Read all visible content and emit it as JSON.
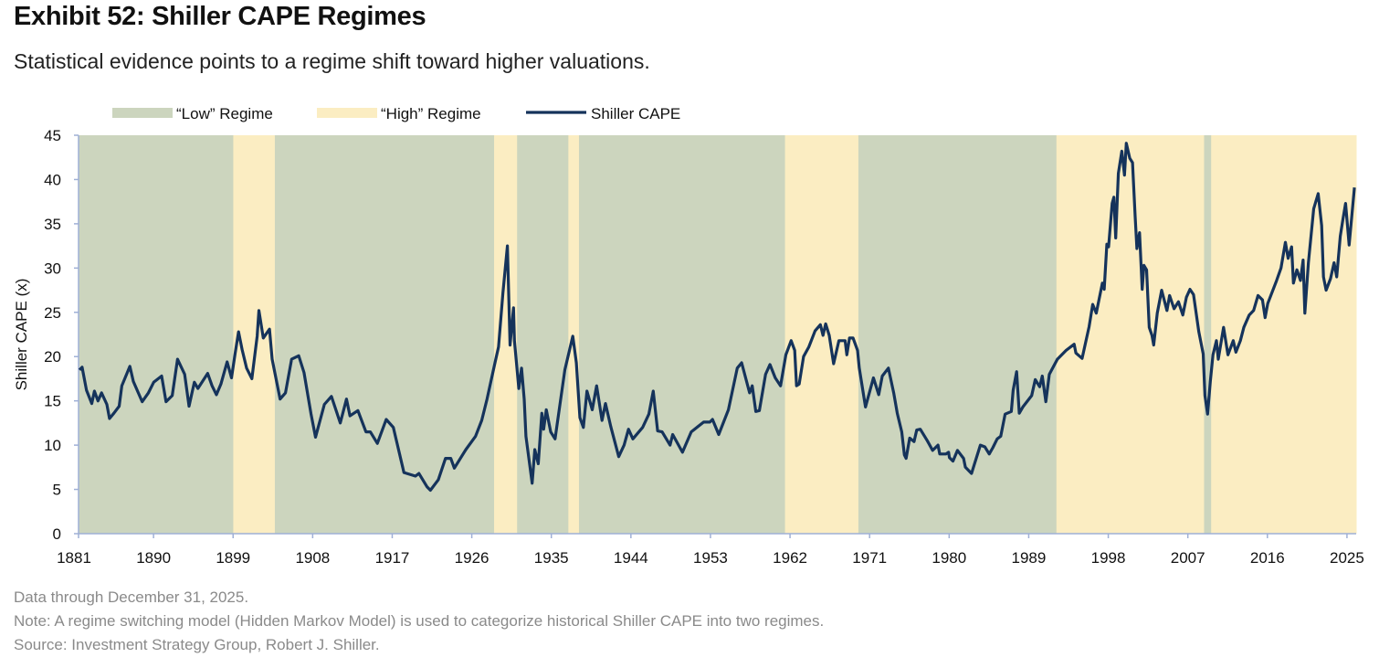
{
  "header": {
    "title": "Exhibit 52: Shiller CAPE Regimes",
    "subtitle": "Statistical evidence points to a regime shift toward higher valuations."
  },
  "footnotes": [
    "Data through December 31, 2025.",
    "Note: A regime switching model (Hidden Markov Model) is used to categorize historical Shiller CAPE into two regimes.",
    "Source: Investment Strategy Group, Robert J. Shiller."
  ],
  "colors": {
    "low": "#CCD5BE",
    "high": "#FBEDC2",
    "line": "#15335B",
    "axis": "#9FB0D6"
  },
  "chart_data": {
    "type": "line",
    "title": "Exhibit 52: Shiller CAPE Regimes",
    "xlabel": "",
    "ylabel": "Shiller CAPE (x)",
    "xlim": [
      1881.5,
      2026.0
    ],
    "ylim": [
      0,
      45
    ],
    "grid": false,
    "legend_placement": "top-left",
    "legend": [
      "“Low” Regime",
      "“High” Regime",
      "Shiller CAPE"
    ],
    "x_ticks": [
      1881,
      1890,
      1899,
      1908,
      1917,
      1926,
      1935,
      1944,
      1953,
      1962,
      1971,
      1980,
      1989,
      1998,
      2007,
      2016,
      2025
    ],
    "y_ticks": [
      0,
      5,
      10,
      15,
      20,
      25,
      30,
      35,
      40,
      45
    ],
    "regimes": [
      {
        "regime": "low",
        "start": 1881.5,
        "end": 1899.0
      },
      {
        "regime": "high",
        "start": 1899.0,
        "end": 1903.7
      },
      {
        "regime": "low",
        "start": 1903.7,
        "end": 1928.5
      },
      {
        "regime": "high",
        "start": 1928.5,
        "end": 1931.1
      },
      {
        "regime": "low",
        "start": 1931.1,
        "end": 1936.9
      },
      {
        "regime": "high",
        "start": 1936.9,
        "end": 1938.1
      },
      {
        "regime": "low",
        "start": 1938.1,
        "end": 1961.4
      },
      {
        "regime": "high",
        "start": 1961.4,
        "end": 1969.7
      },
      {
        "regime": "low",
        "start": 1969.7,
        "end": 1992.1
      },
      {
        "regime": "high",
        "start": 1992.1,
        "end": 2008.8
      },
      {
        "regime": "low",
        "start": 2008.8,
        "end": 2009.6
      },
      {
        "regime": "high",
        "start": 2009.6,
        "end": 2026.0
      }
    ],
    "series": [
      {
        "name": "Shiller CAPE",
        "points": [
          [
            1881.6,
            18.5
          ],
          [
            1881.9,
            18.8
          ],
          [
            1882.4,
            16.2
          ],
          [
            1883.0,
            14.7
          ],
          [
            1883.3,
            16.1
          ],
          [
            1883.7,
            15.0
          ],
          [
            1884.1,
            15.9
          ],
          [
            1884.7,
            14.6
          ],
          [
            1885.0,
            13.0
          ],
          [
            1885.5,
            13.6
          ],
          [
            1886.1,
            14.4
          ],
          [
            1886.4,
            16.7
          ],
          [
            1887.3,
            18.9
          ],
          [
            1887.7,
            17.2
          ],
          [
            1888.7,
            14.9
          ],
          [
            1889.4,
            15.9
          ],
          [
            1890.0,
            17.1
          ],
          [
            1890.9,
            17.8
          ],
          [
            1891.4,
            14.9
          ],
          [
            1892.1,
            15.6
          ],
          [
            1892.7,
            19.7
          ],
          [
            1893.5,
            18.0
          ],
          [
            1894.0,
            14.4
          ],
          [
            1894.6,
            17.1
          ],
          [
            1895.0,
            16.4
          ],
          [
            1896.1,
            18.1
          ],
          [
            1896.6,
            16.7
          ],
          [
            1897.1,
            15.7
          ],
          [
            1897.6,
            16.9
          ],
          [
            1898.3,
            19.4
          ],
          [
            1898.8,
            17.6
          ],
          [
            1899.2,
            20.3
          ],
          [
            1899.6,
            22.8
          ],
          [
            1900.0,
            20.8
          ],
          [
            1900.5,
            18.7
          ],
          [
            1901.1,
            17.5
          ],
          [
            1901.7,
            22.3
          ],
          [
            1901.9,
            25.2
          ],
          [
            1902.4,
            22.1
          ],
          [
            1903.1,
            23.1
          ],
          [
            1903.4,
            19.7
          ],
          [
            1904.3,
            15.2
          ],
          [
            1904.9,
            15.9
          ],
          [
            1905.6,
            19.7
          ],
          [
            1906.4,
            20.1
          ],
          [
            1907.0,
            18.2
          ],
          [
            1907.8,
            13.5
          ],
          [
            1908.3,
            10.9
          ],
          [
            1909.3,
            14.6
          ],
          [
            1910.1,
            15.5
          ],
          [
            1911.1,
            12.5
          ],
          [
            1911.8,
            15.2
          ],
          [
            1912.2,
            13.3
          ],
          [
            1913.1,
            13.9
          ],
          [
            1914.0,
            11.5
          ],
          [
            1914.5,
            11.5
          ],
          [
            1915.3,
            10.2
          ],
          [
            1916.3,
            12.9
          ],
          [
            1917.1,
            12.0
          ],
          [
            1918.3,
            6.9
          ],
          [
            1919.6,
            6.5
          ],
          [
            1920.0,
            6.8
          ],
          [
            1920.9,
            5.3
          ],
          [
            1921.3,
            4.9
          ],
          [
            1922.2,
            6.1
          ],
          [
            1923.0,
            8.5
          ],
          [
            1923.6,
            8.5
          ],
          [
            1924.0,
            7.4
          ],
          [
            1925.3,
            9.5
          ],
          [
            1926.4,
            11.0
          ],
          [
            1927.1,
            12.8
          ],
          [
            1927.7,
            15.2
          ],
          [
            1928.6,
            19.3
          ],
          [
            1929.0,
            21.1
          ],
          [
            1929.5,
            27.2
          ],
          [
            1930.0,
            32.5
          ],
          [
            1930.3,
            21.3
          ],
          [
            1930.7,
            25.5
          ],
          [
            1930.8,
            21.8
          ],
          [
            1931.3,
            16.4
          ],
          [
            1931.6,
            18.7
          ],
          [
            1931.9,
            15.2
          ],
          [
            1932.1,
            11.0
          ],
          [
            1932.8,
            5.7
          ],
          [
            1933.1,
            9.5
          ],
          [
            1933.5,
            7.9
          ],
          [
            1933.9,
            13.6
          ],
          [
            1934.1,
            11.8
          ],
          [
            1934.4,
            14.0
          ],
          [
            1934.9,
            11.5
          ],
          [
            1935.4,
            10.7
          ],
          [
            1936.5,
            18.5
          ],
          [
            1937.4,
            22.3
          ],
          [
            1937.8,
            19.3
          ],
          [
            1938.2,
            13.1
          ],
          [
            1938.6,
            12.0
          ],
          [
            1939.0,
            16.1
          ],
          [
            1939.6,
            14.0
          ],
          [
            1940.1,
            16.7
          ],
          [
            1940.7,
            12.8
          ],
          [
            1941.1,
            14.7
          ],
          [
            1941.7,
            12.1
          ],
          [
            1942.6,
            8.7
          ],
          [
            1943.2,
            10.0
          ],
          [
            1943.7,
            11.8
          ],
          [
            1944.2,
            10.7
          ],
          [
            1945.3,
            12.0
          ],
          [
            1946.0,
            13.5
          ],
          [
            1946.5,
            16.1
          ],
          [
            1947.0,
            11.6
          ],
          [
            1947.5,
            11.5
          ],
          [
            1948.4,
            10.0
          ],
          [
            1948.7,
            11.2
          ],
          [
            1949.8,
            9.2
          ],
          [
            1950.8,
            11.5
          ],
          [
            1952.2,
            12.6
          ],
          [
            1952.9,
            12.6
          ],
          [
            1953.2,
            12.9
          ],
          [
            1953.9,
            11.2
          ],
          [
            1955.0,
            14.0
          ],
          [
            1956.0,
            18.7
          ],
          [
            1956.5,
            19.3
          ],
          [
            1957.4,
            15.9
          ],
          [
            1957.7,
            16.7
          ],
          [
            1958.1,
            13.8
          ],
          [
            1958.5,
            13.9
          ],
          [
            1959.2,
            18.0
          ],
          [
            1959.7,
            19.1
          ],
          [
            1960.3,
            17.6
          ],
          [
            1960.9,
            16.7
          ],
          [
            1961.5,
            20.2
          ],
          [
            1962.1,
            21.8
          ],
          [
            1962.5,
            20.7
          ],
          [
            1962.7,
            16.7
          ],
          [
            1963.0,
            16.9
          ],
          [
            1963.5,
            20.0
          ],
          [
            1964.1,
            21.1
          ],
          [
            1964.8,
            22.9
          ],
          [
            1965.4,
            23.6
          ],
          [
            1965.7,
            22.4
          ],
          [
            1966.0,
            23.7
          ],
          [
            1966.4,
            22.4
          ],
          [
            1966.9,
            19.2
          ],
          [
            1967.5,
            21.8
          ],
          [
            1968.2,
            21.8
          ],
          [
            1968.4,
            20.2
          ],
          [
            1968.7,
            22.1
          ],
          [
            1969.1,
            22.1
          ],
          [
            1969.6,
            20.7
          ],
          [
            1969.8,
            18.7
          ],
          [
            1970.5,
            14.3
          ],
          [
            1971.4,
            17.6
          ],
          [
            1972.0,
            15.7
          ],
          [
            1972.4,
            17.8
          ],
          [
            1973.1,
            18.7
          ],
          [
            1973.7,
            15.9
          ],
          [
            1974.1,
            13.6
          ],
          [
            1974.6,
            11.5
          ],
          [
            1974.9,
            8.9
          ],
          [
            1975.1,
            8.5
          ],
          [
            1975.5,
            10.8
          ],
          [
            1976.0,
            10.4
          ],
          [
            1976.3,
            11.7
          ],
          [
            1976.7,
            11.8
          ],
          [
            1977.5,
            10.5
          ],
          [
            1978.1,
            9.4
          ],
          [
            1978.7,
            10.0
          ],
          [
            1978.9,
            9.0
          ],
          [
            1979.6,
            9.0
          ],
          [
            1979.9,
            9.2
          ],
          [
            1980.0,
            8.6
          ],
          [
            1980.4,
            8.2
          ],
          [
            1980.9,
            9.4
          ],
          [
            1981.6,
            8.5
          ],
          [
            1981.8,
            7.5
          ],
          [
            1982.5,
            6.8
          ],
          [
            1983.5,
            10.0
          ],
          [
            1984.0,
            9.8
          ],
          [
            1984.5,
            9.0
          ],
          [
            1984.9,
            9.7
          ],
          [
            1985.4,
            10.7
          ],
          [
            1985.8,
            11.0
          ],
          [
            1986.3,
            13.5
          ],
          [
            1987.0,
            13.8
          ],
          [
            1987.2,
            16.2
          ],
          [
            1987.6,
            18.3
          ],
          [
            1987.9,
            13.6
          ],
          [
            1988.3,
            14.3
          ],
          [
            1989.3,
            15.6
          ],
          [
            1989.7,
            17.4
          ],
          [
            1990.2,
            16.6
          ],
          [
            1990.5,
            17.8
          ],
          [
            1990.9,
            14.9
          ],
          [
            1991.3,
            18.0
          ],
          [
            1992.2,
            19.7
          ],
          [
            1993.2,
            20.7
          ],
          [
            1994.1,
            21.4
          ],
          [
            1994.3,
            20.4
          ],
          [
            1995.0,
            19.8
          ],
          [
            1995.8,
            23.4
          ],
          [
            1996.2,
            25.9
          ],
          [
            1996.6,
            24.9
          ],
          [
            1997.3,
            28.3
          ],
          [
            1997.5,
            27.6
          ],
          [
            1997.8,
            32.7
          ],
          [
            1998.0,
            32.4
          ],
          [
            1998.4,
            37.3
          ],
          [
            1998.6,
            38.0
          ],
          [
            1998.8,
            33.4
          ],
          [
            1999.1,
            40.7
          ],
          [
            1999.5,
            43.2
          ],
          [
            1999.8,
            40.5
          ],
          [
            2000.0,
            44.1
          ],
          [
            2000.4,
            42.4
          ],
          [
            2000.7,
            41.9
          ],
          [
            2001.0,
            35.8
          ],
          [
            2001.2,
            32.2
          ],
          [
            2001.5,
            34.0
          ],
          [
            2001.8,
            27.6
          ],
          [
            2002.0,
            30.3
          ],
          [
            2002.3,
            29.8
          ],
          [
            2002.6,
            23.3
          ],
          [
            2002.9,
            22.4
          ],
          [
            2003.1,
            21.3
          ],
          [
            2003.5,
            24.9
          ],
          [
            2004.0,
            27.5
          ],
          [
            2004.6,
            25.2
          ],
          [
            2004.9,
            26.9
          ],
          [
            2005.4,
            25.4
          ],
          [
            2005.9,
            26.2
          ],
          [
            2006.4,
            24.7
          ],
          [
            2006.8,
            26.7
          ],
          [
            2007.2,
            27.6
          ],
          [
            2007.6,
            27.0
          ],
          [
            2008.2,
            22.8
          ],
          [
            2008.7,
            20.3
          ],
          [
            2008.9,
            15.6
          ],
          [
            2009.2,
            13.5
          ],
          [
            2009.5,
            17.2
          ],
          [
            2009.8,
            20.2
          ],
          [
            2010.2,
            21.8
          ],
          [
            2010.4,
            19.7
          ],
          [
            2011.0,
            23.3
          ],
          [
            2011.5,
            20.2
          ],
          [
            2012.1,
            21.8
          ],
          [
            2012.4,
            20.5
          ],
          [
            2012.9,
            21.8
          ],
          [
            2013.3,
            23.3
          ],
          [
            2013.9,
            24.7
          ],
          [
            2014.4,
            25.2
          ],
          [
            2014.9,
            26.9
          ],
          [
            2015.4,
            26.4
          ],
          [
            2015.7,
            24.4
          ],
          [
            2016.0,
            26.0
          ],
          [
            2017.0,
            28.6
          ],
          [
            2017.5,
            30.0
          ],
          [
            2018.0,
            32.9
          ],
          [
            2018.3,
            31.1
          ],
          [
            2018.7,
            32.4
          ],
          [
            2018.9,
            28.3
          ],
          [
            2019.3,
            29.8
          ],
          [
            2019.7,
            28.6
          ],
          [
            2020.0,
            30.9
          ],
          [
            2020.2,
            24.9
          ],
          [
            2020.6,
            30.6
          ],
          [
            2021.2,
            36.7
          ],
          [
            2021.7,
            38.4
          ],
          [
            2022.1,
            34.8
          ],
          [
            2022.3,
            29.0
          ],
          [
            2022.6,
            27.5
          ],
          [
            2023.1,
            28.8
          ],
          [
            2023.5,
            30.6
          ],
          [
            2023.8,
            29.0
          ],
          [
            2024.2,
            33.6
          ],
          [
            2024.5,
            35.5
          ],
          [
            2024.8,
            37.3
          ],
          [
            2025.2,
            32.6
          ],
          [
            2025.8,
            39.1
          ]
        ]
      }
    ]
  }
}
